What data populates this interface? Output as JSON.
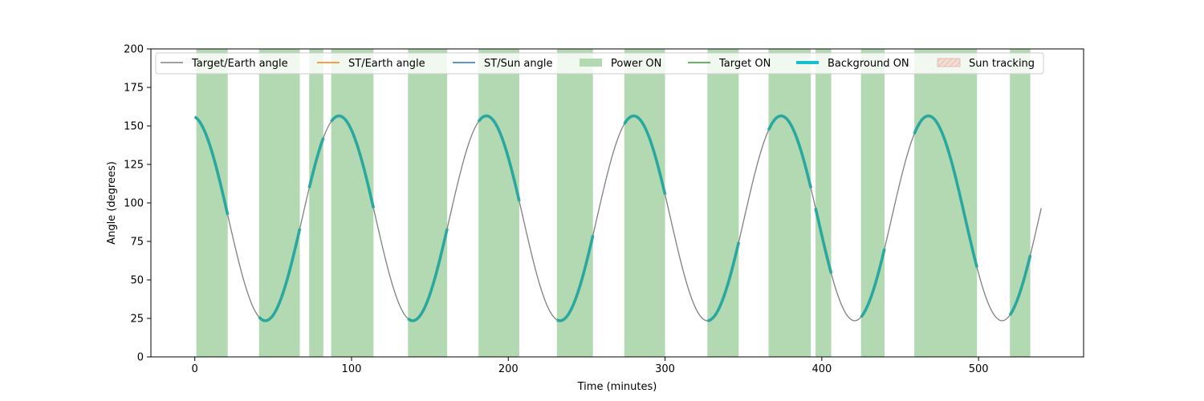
{
  "chart_data": {
    "type": "line",
    "title": "",
    "xlabel": "Time (minutes)",
    "ylabel": "Angle (degrees)",
    "xlim": [
      -28,
      567
    ],
    "ylim": [
      0,
      200
    ],
    "xticks": [
      0,
      100,
      200,
      300,
      400,
      500
    ],
    "yticks": [
      0,
      25,
      50,
      75,
      100,
      125,
      150,
      175,
      200
    ],
    "grid": false,
    "legend_placement": "top-left",
    "legend": [
      {
        "label": "Target/Earth angle",
        "kind": "line",
        "color": "#808080"
      },
      {
        "label": "ST/Earth angle",
        "kind": "line",
        "color": "#ff7f0e"
      },
      {
        "label": "ST/Sun angle",
        "kind": "line",
        "color": "#1f77b4"
      },
      {
        "label": "Power ON",
        "kind": "patch",
        "color": "#b3d9b3"
      },
      {
        "label": "Target ON",
        "kind": "line",
        "color": "#2ca02c"
      },
      {
        "label": "Background ON",
        "kind": "thickline",
        "color": "#17becf"
      },
      {
        "label": "Sun tracking",
        "kind": "hatch",
        "color": "#f4c7c0"
      }
    ],
    "series": [
      {
        "name": "Target/Earth angle",
        "function": "sinusoid",
        "x_range": [
          0,
          540
        ],
        "mean": 90,
        "amplitude": 66.5,
        "period_min": 94,
        "first_peak_min": 92,
        "color": "#808080"
      }
    ],
    "power_on_intervals": [
      [
        1,
        21
      ],
      [
        41,
        67
      ],
      [
        73,
        82
      ],
      [
        87,
        114
      ],
      [
        136,
        161
      ],
      [
        181,
        207
      ],
      [
        231,
        254
      ],
      [
        274,
        300
      ],
      [
        327,
        347
      ],
      [
        366,
        393
      ],
      [
        396,
        406
      ],
      [
        425,
        440
      ],
      [
        459,
        499
      ],
      [
        520,
        533
      ]
    ],
    "background_on_intervals": [
      [
        0,
        21
      ],
      [
        41,
        67
      ],
      [
        73,
        82
      ],
      [
        87,
        114
      ],
      [
        136,
        161
      ],
      [
        181,
        207
      ],
      [
        231,
        254
      ],
      [
        274,
        300
      ],
      [
        327,
        347
      ],
      [
        366,
        393
      ],
      [
        396,
        406
      ],
      [
        425,
        440
      ],
      [
        459,
        499
      ],
      [
        520,
        533
      ]
    ],
    "background_on_color": "#2aa8a0"
  }
}
